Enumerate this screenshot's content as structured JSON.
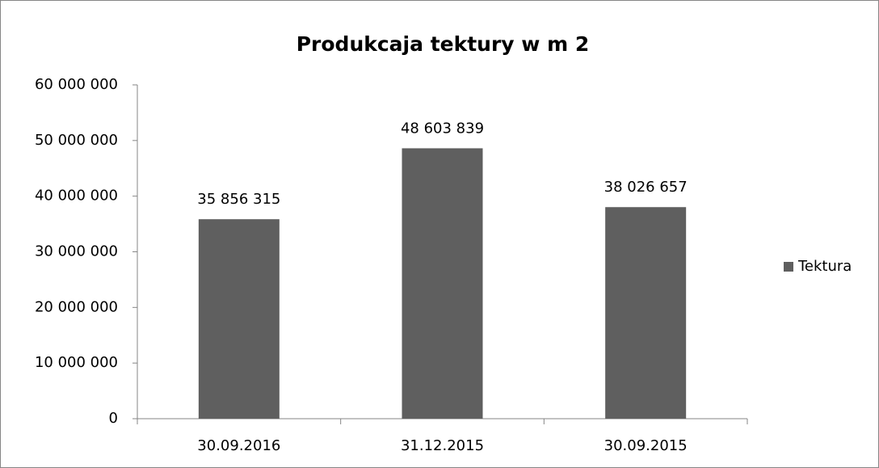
{
  "chart_data": {
    "type": "bar",
    "title": "Produkcaja tektury w m 2",
    "categories": [
      "30.09.2016",
      "31.12.2015",
      "30.09.2015"
    ],
    "series": [
      {
        "name": "Tektura",
        "color": "#5f5f5f",
        "values": [
          35856315,
          48603839,
          38026657
        ],
        "value_labels": [
          "35 856 315",
          "48 603 839",
          "38 026 657"
        ]
      }
    ],
    "ylim": [
      0,
      60000000
    ],
    "yticks": [
      0,
      {
        "value": 10000000,
        "label": "10 000 000"
      },
      {
        "value": 20000000,
        "label": "20 000 000"
      },
      {
        "value": 30000000,
        "label": "30 000 000"
      },
      {
        "value": 40000000,
        "label": "40 000 000"
      },
      {
        "value": 50000000,
        "label": "50 000 000"
      },
      {
        "value": 60000000,
        "label": "60 000 000"
      }
    ],
    "grid": false,
    "legend": "right"
  }
}
